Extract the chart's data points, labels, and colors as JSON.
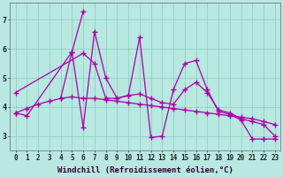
{
  "background_color": "#b8e8e0",
  "grid_color": "#88ccbb",
  "line_color": "#aa00aa",
  "xlim": [
    -0.5,
    23.5
  ],
  "ylim": [
    2.5,
    7.6
  ],
  "xtick_labels": [
    "0",
    "1",
    "2",
    "3",
    "4",
    "5",
    "6",
    "7",
    "8",
    "9",
    "10",
    "11",
    "12",
    "13",
    "14",
    "15",
    "16",
    "17",
    "18",
    "19",
    "20",
    "21",
    "22",
    "23"
  ],
  "ytick_labels": [
    "3",
    "4",
    "5",
    "6",
    "7"
  ],
  "yticks": [
    3,
    4,
    5,
    6,
    7
  ],
  "series": [
    {
      "x": [
        0,
        1,
        5,
        6
      ],
      "y": [
        3.8,
        3.7,
        5.9,
        7.3
      ]
    },
    {
      "x": [
        0,
        6,
        7,
        8,
        9,
        10,
        11,
        12,
        13,
        14,
        15,
        16,
        17,
        18,
        19,
        20,
        21,
        22,
        23
      ],
      "y": [
        4.5,
        5.85,
        5.5,
        4.3,
        4.3,
        4.4,
        4.45,
        4.3,
        4.15,
        4.1,
        4.6,
        4.85,
        4.5,
        3.9,
        3.8,
        3.6,
        3.5,
        3.4,
        3.0
      ]
    },
    {
      "x": [
        4,
        5,
        6,
        7,
        8,
        9,
        10,
        11,
        12,
        13,
        14,
        15,
        16,
        17,
        18,
        19,
        20,
        21,
        22,
        23
      ],
      "y": [
        4.3,
        5.9,
        3.3,
        6.6,
        5.0,
        4.3,
        4.4,
        6.4,
        2.95,
        3.0,
        4.6,
        5.5,
        5.6,
        4.6,
        3.85,
        3.75,
        3.55,
        2.9,
        2.9,
        2.9
      ]
    },
    {
      "x": [
        0,
        1,
        2,
        3,
        4,
        5,
        6,
        7,
        8,
        9,
        10,
        11,
        12,
        13,
        14,
        15,
        16,
        17,
        18,
        19,
        20,
        21,
        22,
        23
      ],
      "y": [
        3.8,
        3.95,
        4.1,
        4.2,
        4.3,
        4.35,
        4.3,
        4.3,
        4.25,
        4.2,
        4.15,
        4.1,
        4.05,
        4.0,
        3.95,
        3.9,
        3.85,
        3.8,
        3.75,
        3.7,
        3.65,
        3.6,
        3.5,
        3.4
      ]
    }
  ],
  "marker": "+",
  "markersize": 4,
  "markeredgewidth": 1.0,
  "linewidth": 0.9,
  "xlabel": "Windchill (Refroidissement éolien,°C)",
  "tick_fontsize": 5.5,
  "label_fontsize": 6.5,
  "font_family": "monospace"
}
